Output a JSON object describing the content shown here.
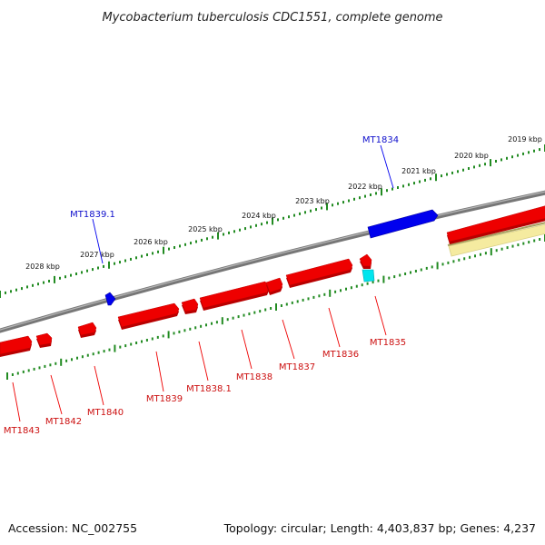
{
  "title": "Mycobacterium tuberculosis CDC1551, complete genome",
  "footer": {
    "accession": "Accession: NC_002755",
    "topology": "Topology: circular; Length: 4,403,837 bp; Genes: 4,237"
  },
  "kbp_labels": [
    "2019 kbp",
    "2020 kbp",
    "2021 kbp",
    "2022 kbp",
    "2023 kbp",
    "2024 kbp",
    "2025 kbp",
    "2026 kbp",
    "2027 kbp",
    "2028 kbp"
  ],
  "gene_labels": {
    "forward": [
      "MT1834",
      "MT1839.1"
    ],
    "reverse": [
      "MT1835",
      "MT1836",
      "MT1837",
      "MT1838",
      "MT1838.1",
      "MT1839",
      "MT1840",
      "MT1842",
      "MT1843"
    ]
  },
  "colors": {
    "backbone": "#808080",
    "forward_gene": "#0000ee",
    "reverse_gene": "#ee0000",
    "tick": "#228b22",
    "misc_feature": "#f5eba0",
    "rna_feature": "#00e5ee",
    "forward_label": "#1010cc",
    "reverse_label": "#cc1010"
  }
}
